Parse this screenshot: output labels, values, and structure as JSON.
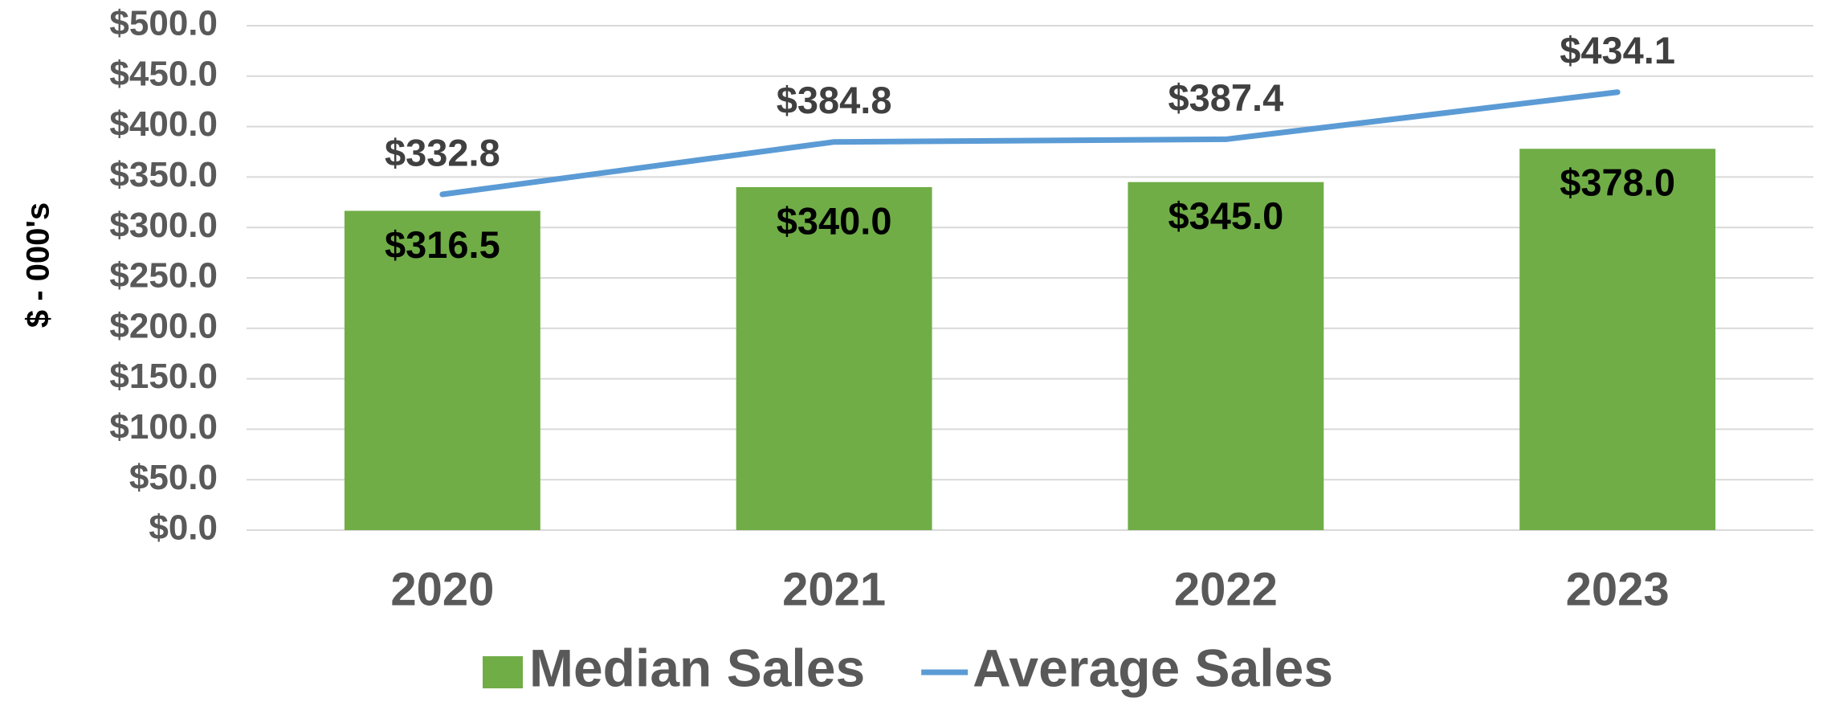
{
  "chart_data": {
    "type": "bar",
    "y_label": "$ - 000's",
    "categories": [
      "2020",
      "2021",
      "2022",
      "2023"
    ],
    "series": [
      {
        "name": "Median Sales",
        "type": "bar",
        "color": "#70ad47",
        "values": [
          316.5,
          340.0,
          345.0,
          378.0
        ],
        "value_labels": [
          "$316.5",
          "$340.0",
          "$345.0",
          "$378.0"
        ]
      },
      {
        "name": "Average Sales",
        "type": "line",
        "color": "#5b9bd5",
        "values": [
          332.8,
          384.8,
          387.4,
          434.1
        ],
        "value_labels": [
          "$332.8",
          "$384.8",
          "$387.4",
          "$434.1"
        ]
      }
    ],
    "ylim": [
      0,
      500
    ],
    "yticks": [
      {
        "value": 0,
        "label": "$0.0"
      },
      {
        "value": 50,
        "label": "$50.0"
      },
      {
        "value": 100,
        "label": "$100.0"
      },
      {
        "value": 150,
        "label": "$150.0"
      },
      {
        "value": 200,
        "label": "$200.0"
      },
      {
        "value": 250,
        "label": "$250.0"
      },
      {
        "value": 300,
        "label": "$300.0"
      },
      {
        "value": 350,
        "label": "$350.0"
      },
      {
        "value": 400,
        "label": "$400.0"
      },
      {
        "value": 450,
        "label": "$450.0"
      },
      {
        "value": 500,
        "label": "$500.0"
      }
    ],
    "grid": true,
    "legend": "bottom"
  }
}
